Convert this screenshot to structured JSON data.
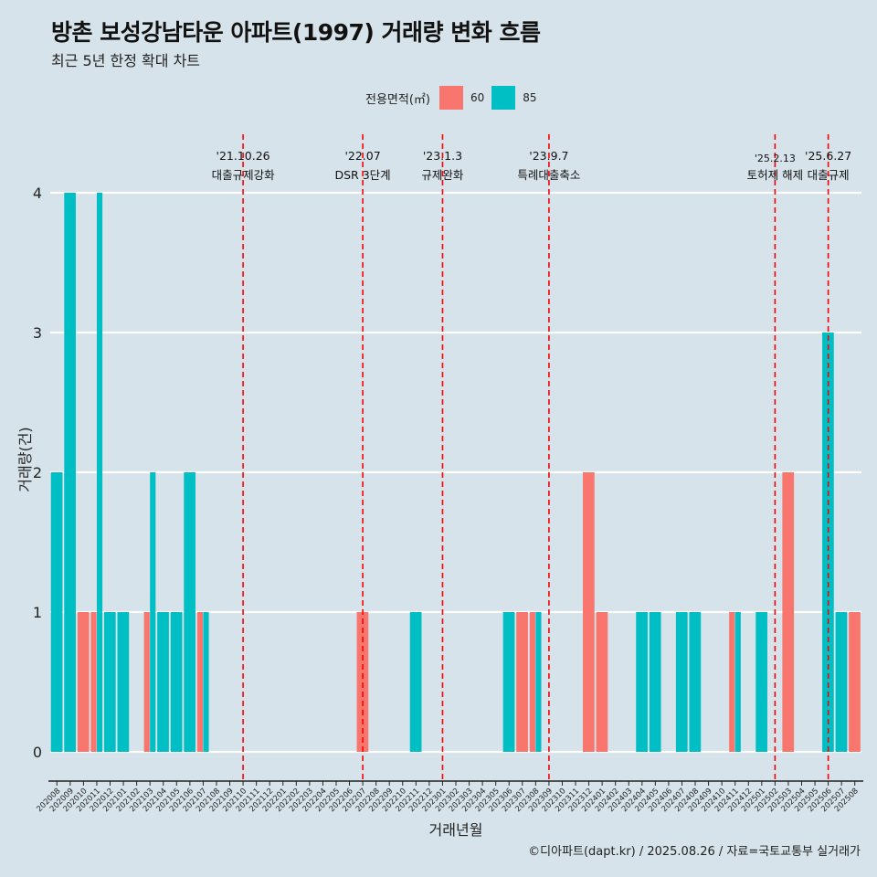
{
  "title": "방촌 보성강남타운 아파트(1997) 거래량 변화 흐름",
  "subtitle": "최근 5년 한정 확대 차트",
  "caption": "©디아파트(dapt.kr) / 2025.08.26 / 자료=국토교통부 실거래가",
  "legend": {
    "title": "전용면적(㎡)",
    "items": [
      {
        "label": "60",
        "color": "#f8766d"
      },
      {
        "label": "85",
        "color": "#00bfc4"
      }
    ]
  },
  "chart_data": {
    "type": "bar",
    "stacking": "dodge",
    "xlabel": "거래년월",
    "ylabel": "거래량(건)",
    "ylim": [
      0,
      4
    ],
    "yticks": [
      0,
      1,
      2,
      3,
      4
    ],
    "grid": true,
    "legend_position": "top",
    "categories": [
      "202008",
      "202009",
      "202010",
      "202011",
      "202012",
      "202101",
      "202102",
      "202103",
      "202104",
      "202105",
      "202106",
      "202107",
      "202108",
      "202109",
      "202110",
      "202111",
      "202112",
      "202201",
      "202202",
      "202203",
      "202204",
      "202205",
      "202206",
      "202207",
      "202208",
      "202209",
      "202210",
      "202211",
      "202212",
      "202301",
      "202302",
      "202303",
      "202304",
      "202305",
      "202306",
      "202307",
      "202308",
      "202309",
      "202310",
      "202311",
      "202312",
      "202401",
      "202402",
      "202403",
      "202404",
      "202405",
      "202406",
      "202407",
      "202408",
      "202409",
      "202410",
      "202411",
      "202412",
      "202501",
      "202502",
      "202503",
      "202504",
      "202505",
      "202506",
      "202507",
      "202508"
    ],
    "series": [
      {
        "name": "60",
        "color": "#f8766d",
        "values": [
          0,
          0,
          1,
          1,
          0,
          0,
          0,
          1,
          0,
          0,
          0,
          1,
          0,
          0,
          0,
          0,
          0,
          0,
          0,
          0,
          0,
          0,
          0,
          1,
          0,
          0,
          0,
          0,
          0,
          0,
          0,
          0,
          0,
          0,
          0,
          1,
          1,
          0,
          0,
          0,
          2,
          1,
          0,
          0,
          0,
          0,
          0,
          0,
          0,
          0,
          0,
          1,
          0,
          0,
          0,
          2,
          0,
          0,
          0,
          0,
          1
        ]
      },
      {
        "name": "85",
        "color": "#00bfc4",
        "values": [
          2,
          4,
          0,
          4,
          1,
          1,
          0,
          2,
          1,
          1,
          2,
          1,
          0,
          0,
          0,
          0,
          0,
          0,
          0,
          0,
          0,
          0,
          0,
          0,
          0,
          0,
          0,
          1,
          0,
          0,
          0,
          0,
          0,
          0,
          1,
          0,
          1,
          0,
          0,
          0,
          0,
          0,
          0,
          0,
          1,
          1,
          0,
          1,
          1,
          0,
          0,
          1,
          0,
          1,
          0,
          0,
          0,
          0,
          3,
          1,
          0
        ]
      }
    ],
    "annotations": [
      {
        "date": "'21.10.26",
        "text": "대출규제강화",
        "x_category": "202110"
      },
      {
        "date": "'22.07",
        "text": "DSR 3단계",
        "x_category": "202207"
      },
      {
        "date": "'23.1.3",
        "text": "규제완화",
        "x_category": "202301"
      },
      {
        "date": "'23.9.7",
        "text": "특례대출축소",
        "x_category": "202309"
      },
      {
        "date": "'25.2.13",
        "text": "토허제 해제",
        "x_category": "202502"
      },
      {
        "date": "'25.6.27",
        "text": "대출규제",
        "x_category": "202506"
      }
    ],
    "annotation_line_color": "#ff0000"
  }
}
